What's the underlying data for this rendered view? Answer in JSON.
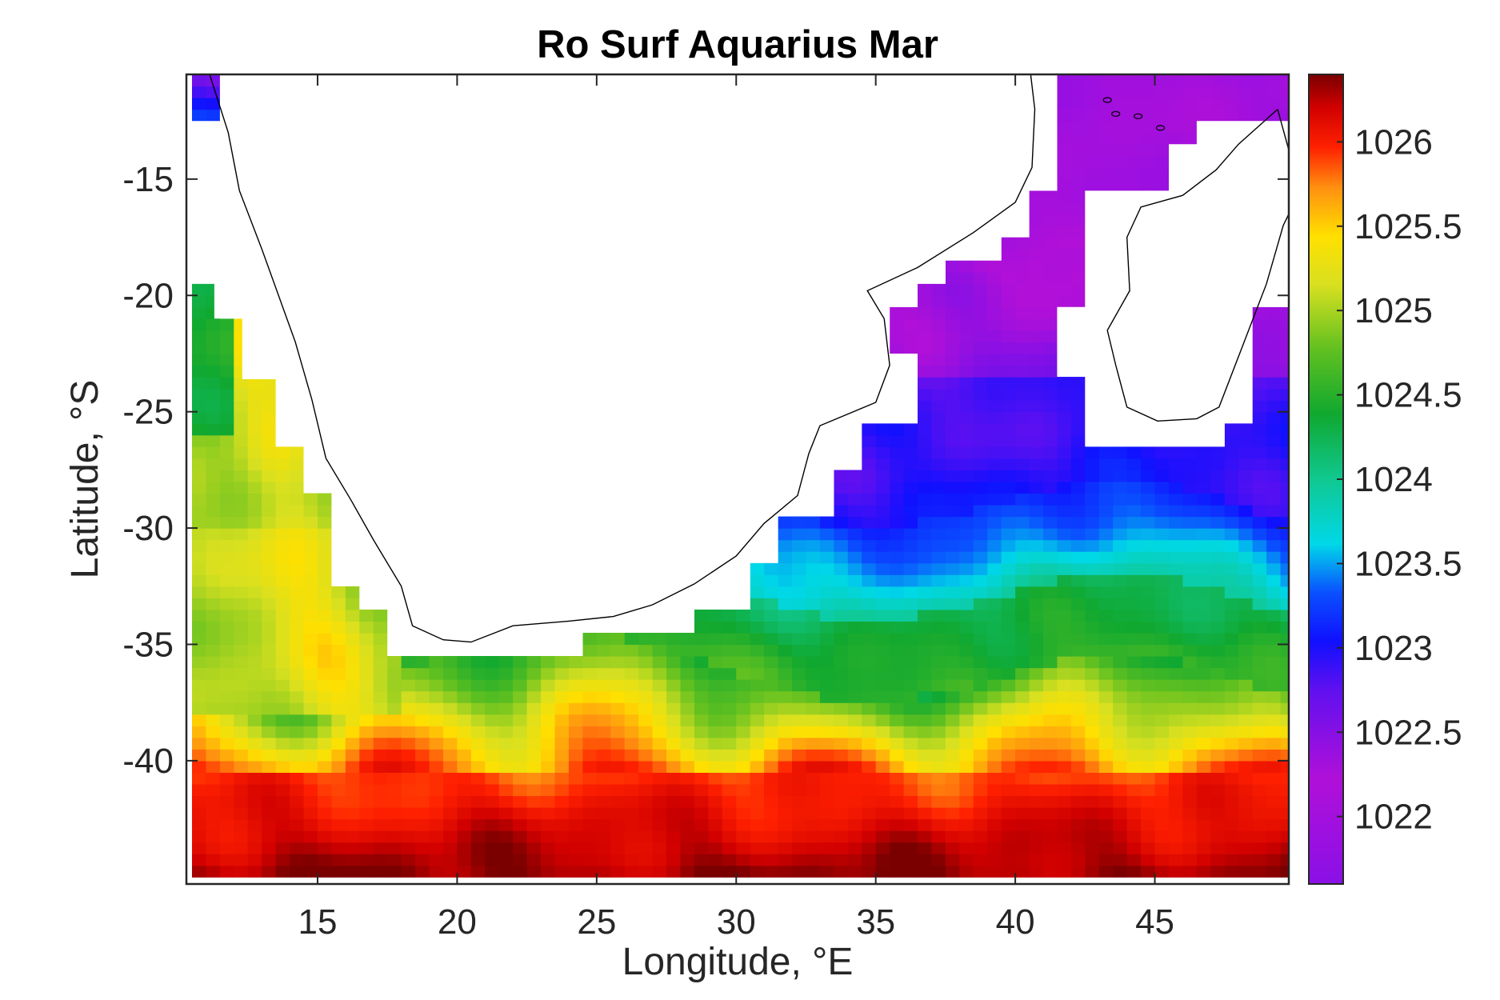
{
  "chart_data": {
    "type": "heatmap",
    "title": "Ro Surf Aquarius Mar",
    "xlabel": "Longitude, °E",
    "ylabel": "Latitude, °S",
    "xlim": [
      10.3,
      49.8
    ],
    "ylim": [
      -45.3,
      -10.5
    ],
    "x_ticks": [
      15,
      20,
      25,
      30,
      35,
      40,
      45
    ],
    "x_tick_labels": [
      "15",
      "20",
      "25",
      "30",
      "35",
      "40",
      "45"
    ],
    "y_ticks": [
      -15,
      -20,
      -25,
      -30,
      -35,
      -40
    ],
    "y_tick_labels": [
      "-15",
      "-20",
      "-25",
      "-30",
      "-35",
      "-40"
    ],
    "colorbar": {
      "range": [
        1021.6,
        1026.4
      ],
      "ticks": [
        1022,
        1022.5,
        1023,
        1023.5,
        1024,
        1024.5,
        1025,
        1025.5,
        1026
      ],
      "tick_labels": [
        "1022",
        "1022.5",
        "1023",
        "1023.5",
        "1024",
        "1024.5",
        "1025",
        "1025.5",
        "1026"
      ],
      "colormap": "jet-like (purple → blue → cyan → green → yellow → red → dark red)",
      "colors": [
        "#8a10e6",
        "#b010d8",
        "#6010f0",
        "#1010ff",
        "#0a50ff",
        "#00d8e8",
        "#10c890",
        "#10a830",
        "#60c020",
        "#d8e020",
        "#ffe000",
        "#ff9010",
        "#ff2000",
        "#d00000",
        "#7a0000"
      ]
    },
    "z_summary": {
      "description": "Surface density (Ro) field",
      "bands": [
        {
          "latitude_range": [
            -45,
            -40
          ],
          "value_range": [
            1025.5,
            1026.4
          ]
        },
        {
          "latitude_range": [
            -40,
            -36
          ],
          "value_range": [
            1024.5,
            1025.3
          ]
        },
        {
          "latitude_range": [
            -36,
            -33
          ],
          "value_range": [
            1024.1,
            1024.5
          ]
        },
        {
          "latitude_range": [
            -33,
            -29
          ],
          "value_range": [
            1023.4,
            1023.9
          ]
        },
        {
          "latitude_range": [
            -29,
            -24
          ],
          "value_range": [
            1022.8,
            1023.2
          ]
        },
        {
          "latitude_range": [
            -24,
            -11
          ],
          "value_range": [
            1021.8,
            1022.4
          ]
        }
      ],
      "west_coast_range": [
        1024.8,
        1025.8
      ]
    }
  }
}
